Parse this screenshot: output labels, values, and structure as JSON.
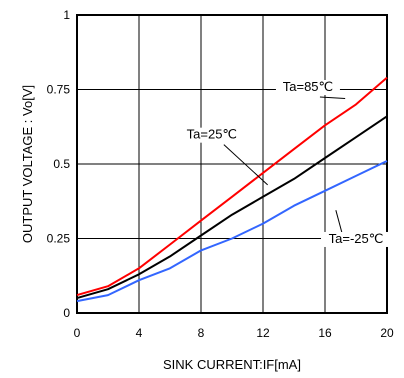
{
  "chart_data": {
    "type": "line",
    "xlabel": "SINK CURRENT:IF[mA]",
    "ylabel": "OUTPUT VOLTAGE : Vo[V]",
    "xlim": [
      0,
      20
    ],
    "ylim": [
      0,
      1
    ],
    "x_ticks": [
      "0",
      "4",
      "8",
      "12",
      "16",
      "20"
    ],
    "y_ticks": [
      "0",
      "0.25",
      "0.5",
      "0.75",
      "1"
    ],
    "grid": true,
    "series": [
      {
        "name": "Ta=85℃",
        "color": "#ff0000",
        "x": [
          0,
          2,
          4,
          6,
          8,
          10,
          12,
          14,
          16,
          18,
          20
        ],
        "y": [
          0.06,
          0.09,
          0.15,
          0.23,
          0.31,
          0.39,
          0.47,
          0.55,
          0.63,
          0.7,
          0.79
        ]
      },
      {
        "name": "Ta=25℃",
        "color": "#000000",
        "x": [
          0,
          2,
          4,
          6,
          8,
          10,
          12,
          14,
          16,
          18,
          20
        ],
        "y": [
          0.05,
          0.08,
          0.13,
          0.19,
          0.26,
          0.33,
          0.39,
          0.45,
          0.52,
          0.59,
          0.66
        ]
      },
      {
        "name": "Ta=-25℃",
        "color": "#3366ff",
        "x": [
          0,
          2,
          4,
          6,
          8,
          10,
          12,
          14,
          16,
          18,
          20
        ],
        "y": [
          0.04,
          0.06,
          0.11,
          0.15,
          0.21,
          0.25,
          0.3,
          0.36,
          0.41,
          0.46,
          0.51
        ]
      }
    ]
  }
}
